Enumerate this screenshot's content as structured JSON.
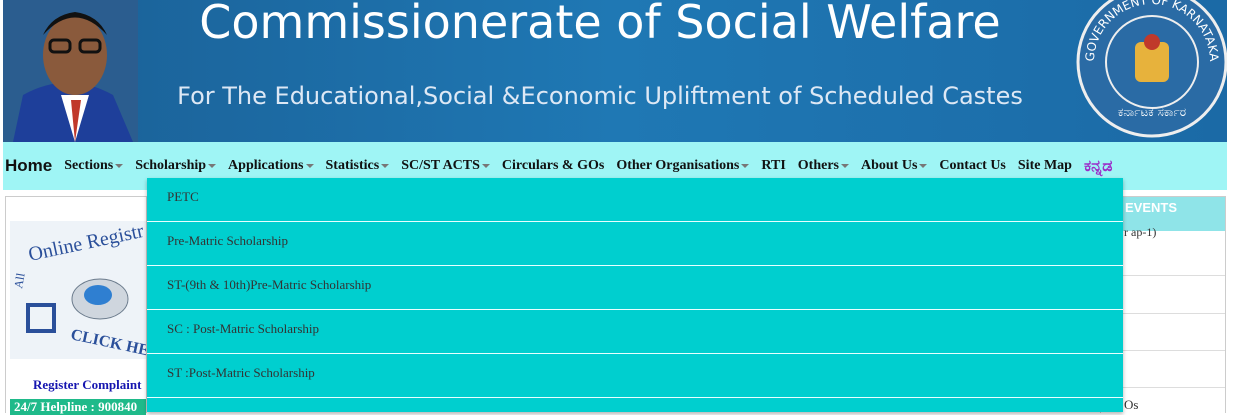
{
  "header": {
    "title": "Commissionerate of Social Welfare",
    "subtitle": "For The Educational,Social &Economic Upliftment of Scheduled Castes",
    "emblem_text": "GOVERNMENT OF KARNATAKA",
    "emblem_kannada": "ಕರ್ನಾಟಕ ಸರ್ಕಾರ"
  },
  "nav": {
    "items": [
      "Home",
      "Sections",
      "Scholarship",
      "Applications",
      "Statistics",
      "SC/ST ACTS",
      "Circulars & GOs",
      "Other Organisations",
      "RTI",
      "Others",
      "About Us",
      "Contact Us",
      "Site Map",
      "ಕನ್ನಡ"
    ]
  },
  "dropdown": {
    "items": [
      "PETC",
      "Pre-Matric Scholarship",
      "ST-(9th & 10th)Pre-Matric Scholarship",
      "SC : Post-Matric Scholarship",
      "ST :Post-Matric Scholarship"
    ]
  },
  "left_panel": {
    "banner_top": "Online Registr",
    "banner_all": "All",
    "banner_click": "CLICK HE",
    "complaint": "Register Complaint",
    "helpline": "24/7 Helpline : 900840"
  },
  "right_panel": {
    "heading": "EVENTS",
    "item_fragment": "r ap-1)",
    "item_fragment_2": "Os"
  }
}
